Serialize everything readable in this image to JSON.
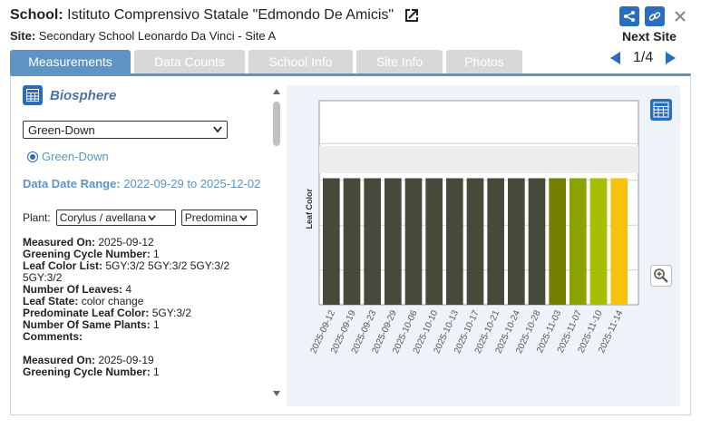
{
  "header": {
    "school_label": "School:",
    "school_name": "Istituto Comprensivo Statale \"Edmondo De Amicis\"",
    "site_label": "Site:",
    "site_name": "Secondary School Leonardo Da Vinci - Site A"
  },
  "nav": {
    "next_site": "Next Site",
    "page": "1/4"
  },
  "tabs": [
    {
      "label": "Measurements",
      "active": true
    },
    {
      "label": "Data Counts"
    },
    {
      "label": "School Info"
    },
    {
      "label": "Site Info"
    },
    {
      "label": "Photos"
    }
  ],
  "left": {
    "protocol": "Biosphere",
    "select_value": "Green-Down",
    "radio_label": "Green-Down",
    "range_label": "Data Date Range:",
    "range_value": "2022-09-29 to 2025-12-02",
    "plant_label": "Plant:",
    "plant_select": "Corylus / avellana",
    "type_select": "Predomina",
    "records": [
      [
        {
          "k": "Measured On:",
          "v": "2025-09-12"
        },
        {
          "k": "Greening Cycle Number:",
          "v": "1"
        },
        {
          "k": "Leaf Color List:",
          "v": "5GY:3/2 5GY:3/2 5GY:3/2 5GY:3/2"
        },
        {
          "k": "Number Of Leaves:",
          "v": "4"
        },
        {
          "k": "Leaf State:",
          "v": "color change"
        },
        {
          "k": "Predominate Leaf Color:",
          "v": "5GY:3/2"
        },
        {
          "k": "Number Of Same Plants:",
          "v": "1"
        },
        {
          "k": "Comments:",
          "v": ""
        }
      ],
      [
        {
          "k": "Measured On:",
          "v": "2025-09-19"
        },
        {
          "k": "Greening Cycle Number:",
          "v": "1"
        }
      ]
    ]
  },
  "colors": {
    "accent": "#2a6ebb",
    "tab_active": "#5d94c3",
    "tab_inactive": "#d8d8d8"
  },
  "chart_data": {
    "type": "bar",
    "ylabel": "Leaf Color",
    "categories": [
      "2025-09-12",
      "2025-09-19",
      "2025-09-23",
      "2025-09-29",
      "2025-10-06",
      "2025-10-10",
      "2025-10-13",
      "2025-10-17",
      "2025-10-21",
      "2025-10-24",
      "2025-10-28",
      "2025-11-03",
      "2025-11-07",
      "2025-11-10",
      "2025-11-14"
    ],
    "values": [
      0.62,
      0.62,
      0.62,
      0.62,
      0.62,
      0.62,
      0.62,
      0.62,
      0.62,
      0.62,
      0.62,
      0.62,
      0.62,
      0.62,
      0.62
    ],
    "bar_colors": [
      "#464a3b",
      "#464a3b",
      "#464a3b",
      "#464a3b",
      "#464a3b",
      "#464a3b",
      "#464a3b",
      "#464a3b",
      "#464a3b",
      "#464a3b",
      "#464a3b",
      "#747f00",
      "#8aa300",
      "#a6bf00",
      "#f7c20b"
    ],
    "ylim": [
      0,
      1
    ],
    "grid": true
  }
}
